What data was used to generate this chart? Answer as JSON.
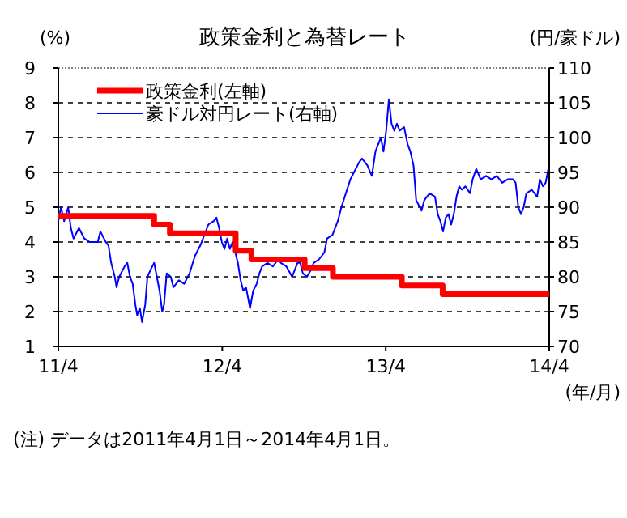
{
  "chart_data": {
    "type": "line",
    "title": "政策金利と為替レート",
    "xlabel": "(年/月)",
    "ylabel": "(%)",
    "y2label": "(円/豪ドル)",
    "xlim": [
      "2011-04-01",
      "2014-04-01"
    ],
    "xticks": [
      {
        "value": "2011-04-01",
        "label": "11/4"
      },
      {
        "value": "2012-04-01",
        "label": "12/4"
      },
      {
        "value": "2013-04-01",
        "label": "13/4"
      },
      {
        "value": "2014-04-01",
        "label": "14/4"
      }
    ],
    "ylim": [
      1,
      9
    ],
    "yticks": [
      1,
      2,
      3,
      4,
      5,
      6,
      7,
      8,
      9
    ],
    "y2lim": [
      70,
      110
    ],
    "y2ticks": [
      70,
      75,
      80,
      85,
      90,
      95,
      100,
      105,
      110
    ],
    "grid": "y",
    "legend": "top left",
    "series": [
      {
        "name": "政策金利(左軸)",
        "type": "step",
        "color": "#ff0000",
        "x": [
          "2011-04-01",
          "2011-11-01",
          "2011-12-06",
          "2012-05-01",
          "2012-06-05",
          "2012-10-02",
          "2012-12-04",
          "2013-05-07",
          "2013-08-06",
          "2014-04-01"
        ],
        "values": [
          4.75,
          4.5,
          4.25,
          3.75,
          3.5,
          3.25,
          3.0,
          2.75,
          2.5,
          2.5
        ]
      },
      {
        "name": "豪ドル対円レート(右軸)",
        "type": "line",
        "axis": "y2",
        "color": "#0000ff",
        "x": [
          "2011-04-01",
          "2011-04-07",
          "2011-04-14",
          "2011-04-23",
          "2011-04-29",
          "2011-05-05",
          "2011-05-17",
          "2011-05-29",
          "2011-06-10",
          "2011-06-28",
          "2011-07-04",
          "2011-07-16",
          "2011-07-22",
          "2011-07-28",
          "2011-08-05",
          "2011-08-09",
          "2011-08-15",
          "2011-08-27",
          "2011-09-02",
          "2011-09-08",
          "2011-09-14",
          "2011-09-20",
          "2011-09-24",
          "2011-09-30",
          "2011-10-05",
          "2011-10-12",
          "2011-10-17",
          "2011-10-24",
          "2011-11-01",
          "2011-11-07",
          "2011-11-13",
          "2011-11-19",
          "2011-11-23",
          "2011-11-29",
          "2011-12-08",
          "2011-12-14",
          "2011-12-26",
          "2012-01-07",
          "2012-01-19",
          "2012-01-31",
          "2012-02-12",
          "2012-02-21",
          "2012-03-01",
          "2012-03-13",
          "2012-03-19",
          "2012-03-25",
          "2012-03-31",
          "2012-04-06",
          "2012-04-12",
          "2012-04-18",
          "2012-04-24",
          "2012-05-06",
          "2012-05-12",
          "2012-05-18",
          "2012-05-24",
          "2012-06-02",
          "2012-06-09",
          "2012-06-17",
          "2012-06-23",
          "2012-06-29",
          "2012-07-11",
          "2012-07-23",
          "2012-08-04",
          "2012-08-10",
          "2012-08-22",
          "2012-09-04",
          "2012-09-10",
          "2012-09-16",
          "2012-09-22",
          "2012-09-28",
          "2012-10-07",
          "2012-10-16",
          "2012-10-22",
          "2012-11-03",
          "2012-11-15",
          "2012-11-21",
          "2012-12-03",
          "2012-12-15",
          "2012-12-23",
          "2013-01-02",
          "2013-01-12",
          "2013-01-20",
          "2013-02-01",
          "2013-02-07",
          "2013-02-19",
          "2013-03-01",
          "2013-03-09",
          "2013-03-15",
          "2013-03-21",
          "2013-03-27",
          "2013-04-02",
          "2013-04-08",
          "2013-04-14",
          "2013-04-20",
          "2013-04-26",
          "2013-05-02",
          "2013-05-12",
          "2013-05-20",
          "2013-05-26",
          "2013-06-02",
          "2013-06-08",
          "2013-06-20",
          "2013-06-26",
          "2013-07-08",
          "2013-07-20",
          "2013-07-26",
          "2013-08-01",
          "2013-08-07",
          "2013-08-13",
          "2013-08-19",
          "2013-08-25",
          "2013-08-31",
          "2013-09-06",
          "2013-09-12",
          "2013-09-18",
          "2013-09-26",
          "2013-10-06",
          "2013-10-12",
          "2013-10-20",
          "2013-10-30",
          "2013-11-11",
          "2013-11-23",
          "2013-12-05",
          "2013-12-17",
          "2013-12-29",
          "2014-01-10",
          "2014-01-16",
          "2014-01-22",
          "2014-01-28",
          "2014-02-03",
          "2014-02-09",
          "2014-02-21",
          "2014-03-05",
          "2014-03-11",
          "2014-03-18",
          "2014-03-24",
          "2014-03-30"
        ],
        "values": [
          88,
          90,
          88,
          90,
          87,
          85.5,
          87,
          85.5,
          85,
          85,
          86.5,
          85,
          84.5,
          82,
          80,
          78.5,
          80,
          81.5,
          82,
          80,
          79,
          76,
          74.5,
          75.5,
          73.5,
          76,
          80,
          81,
          82,
          80,
          78,
          75,
          76,
          80.5,
          80,
          78.5,
          79.5,
          79,
          80.5,
          83,
          84.5,
          86,
          87.5,
          88,
          88.5,
          87,
          85,
          84,
          85.5,
          84,
          85,
          82,
          79.5,
          78,
          78.5,
          75.5,
          78,
          79,
          80.5,
          81.5,
          82,
          81.5,
          82.5,
          82,
          81.5,
          80,
          81,
          82,
          82,
          80.5,
          80,
          81,
          82,
          82.5,
          83.5,
          85.5,
          86,
          88,
          90,
          92,
          94,
          95,
          96.5,
          97,
          96,
          94.5,
          98,
          99,
          100,
          98,
          101,
          105.5,
          102,
          101,
          102,
          101,
          101.5,
          99,
          98,
          96,
          91,
          89.5,
          91,
          92,
          91.5,
          89,
          88,
          86.5,
          88.5,
          89,
          87.5,
          89,
          91.5,
          93,
          92.5,
          93,
          92,
          94,
          95.5,
          94,
          94.5,
          94,
          94.5,
          93.5,
          94,
          94,
          93.5,
          90,
          89,
          90,
          92,
          92.5,
          91.5,
          94,
          93,
          93.5,
          95.5
        ]
      }
    ],
    "annotations": [
      "(注) データは2011年4月1日～2014年4月1日。"
    ]
  }
}
